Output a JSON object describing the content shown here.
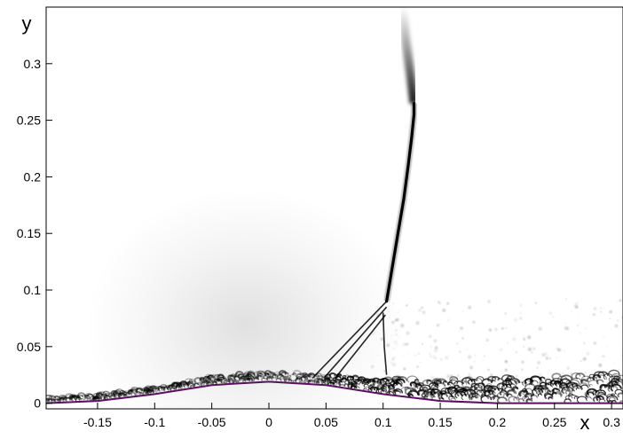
{
  "chart_data": {
    "type": "heatmap",
    "title": "",
    "xlabel": "x",
    "ylabel": "y",
    "xlim": [
      -0.195,
      0.31
    ],
    "ylim": [
      -0.005,
      0.35
    ],
    "x_ticks": [
      -0.15,
      -0.1,
      -0.05,
      0,
      0.05,
      0.1,
      0.15,
      0.2,
      0.25,
      0.3
    ],
    "x_tick_labels": [
      "-0.15",
      "-0.1",
      "-0.05",
      "0",
      "0.05",
      "0.1",
      "0.15",
      "0.2",
      "0.25",
      "0.3"
    ],
    "y_ticks": [
      0,
      0.05,
      0.1,
      0.15,
      0.2,
      0.25,
      0.3
    ],
    "y_tick_labels": [
      "0",
      "0.05",
      "0.1",
      "0.15",
      "0.2",
      "0.25",
      "0.3"
    ],
    "colormap": "grayscale (white to black)",
    "wall_color": "#5a1060",
    "wall_profile": {
      "x": [
        -0.195,
        -0.15,
        -0.1,
        -0.05,
        0,
        0.05,
        0.1,
        0.15,
        0.2,
        0.25,
        0.31
      ],
      "y": [
        0.0,
        0.002,
        0.008,
        0.016,
        0.019,
        0.016,
        0.008,
        0.002,
        0.0,
        0.0,
        0.0
      ]
    },
    "shock_main": {
      "x": [
        0.103,
        0.108,
        0.113,
        0.118,
        0.122,
        0.125,
        0.127,
        0.127
      ],
      "y": [
        0.09,
        0.12,
        0.15,
        0.18,
        0.21,
        0.235,
        0.255,
        0.265
      ]
    },
    "shock_upper_diffuse": {
      "x": [
        0.127,
        0.124,
        0.12,
        0.117
      ],
      "y": [
        0.265,
        0.29,
        0.32,
        0.35
      ]
    },
    "shock_lambda_feet": [
      {
        "x": [
          0.038,
          0.103
        ],
        "y": [
          0.022,
          0.09
        ]
      },
      {
        "x": [
          0.048,
          0.103
        ],
        "y": [
          0.022,
          0.085
        ]
      },
      {
        "x": [
          0.058,
          0.102
        ],
        "y": [
          0.022,
          0.078
        ]
      },
      {
        "x": [
          0.1,
          0.101,
          0.103
        ],
        "y": [
          0.08,
          0.05,
          0.025
        ]
      }
    ],
    "boundary_layer": {
      "thickness_x": [
        -0.195,
        -0.1,
        -0.05,
        0.0,
        0.04,
        0.1,
        0.15,
        0.2,
        0.25,
        0.31
      ],
      "thickness_y": [
        0.004,
        0.005,
        0.006,
        0.007,
        0.008,
        0.012,
        0.018,
        0.02,
        0.022,
        0.025
      ]
    }
  }
}
